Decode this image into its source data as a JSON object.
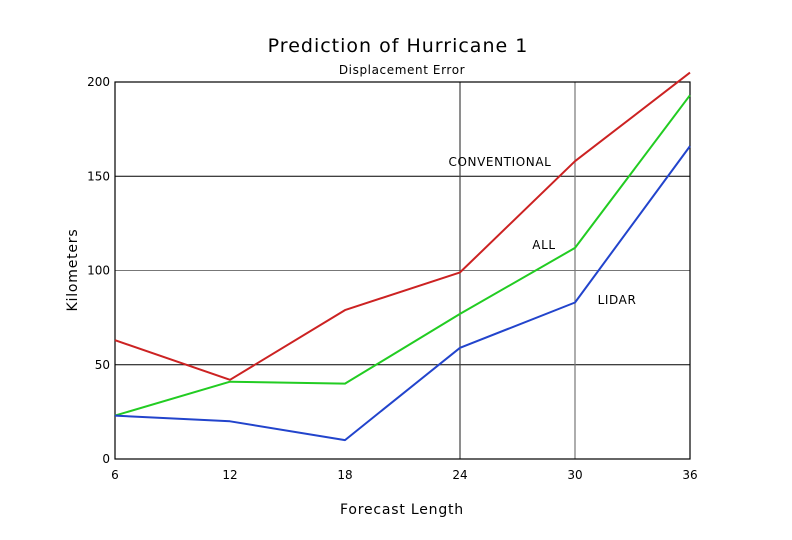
{
  "chart_data": {
    "type": "line",
    "title": "Prediction of Hurricane 1",
    "subtitle": "Displacement Error",
    "xlabel": "Forecast Length",
    "ylabel": "Kilometers",
    "x": [
      6,
      12,
      18,
      24,
      30,
      36
    ],
    "xlim": [
      6,
      36
    ],
    "ylim": [
      0,
      200
    ],
    "xticks": [
      "6",
      "12",
      "18",
      "24",
      "30",
      "36"
    ],
    "yticks": [
      "0",
      "50",
      "100",
      "150",
      "200"
    ],
    "grid": true,
    "series": [
      {
        "name": "CONVENTIONAL",
        "color": "#cc2222",
        "values": [
          63,
          42,
          79,
          99,
          158,
          206
        ]
      },
      {
        "name": "ALL",
        "color": "#22cc22",
        "values": [
          23,
          41,
          40,
          77,
          112,
          193
        ]
      },
      {
        "name": "LIDAR",
        "color": "#2244cc",
        "values": [
          23,
          20,
          10,
          59,
          83,
          166
        ]
      }
    ]
  }
}
